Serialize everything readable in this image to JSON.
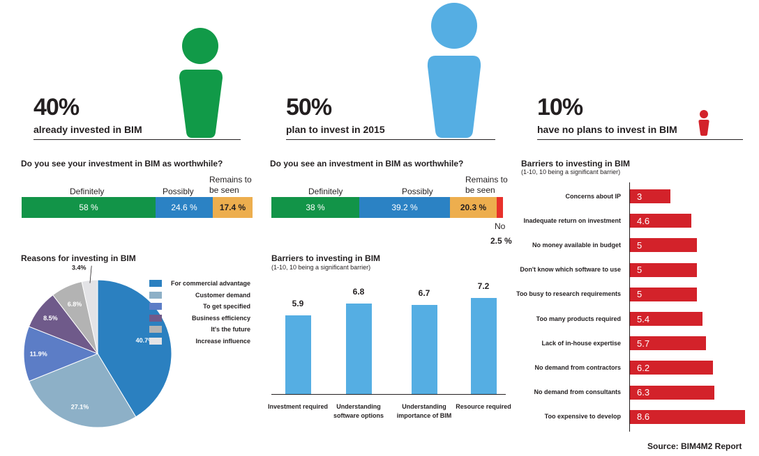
{
  "stats": [
    {
      "percent": "40%",
      "label": "already invested in BIM",
      "color": "#119a48"
    },
    {
      "percent": "50%",
      "label": "plan to invest in 2015",
      "color": "#55aee3"
    },
    {
      "percent": "10%",
      "label": "have no plans to invest in BIM",
      "color": "#d3222a"
    }
  ],
  "q1": {
    "title": "Do you see your investment in BIM as worthwhile?",
    "segments": [
      {
        "label": "Definitely",
        "value_text": "58 %",
        "value": 58,
        "color": "#129448"
      },
      {
        "label": "Possibly",
        "value_text": "24.6 %",
        "value": 24.6,
        "color": "#2b82c4"
      },
      {
        "label": "Remains to be seen",
        "value_text": "17.4 %",
        "value": 17.4,
        "color": "#edae4e"
      }
    ]
  },
  "q2": {
    "title": "Do you see an investment in BIM as worthwhile?",
    "segments": [
      {
        "label": "Definitely",
        "value_text": "38 %",
        "value": 38,
        "color": "#129448"
      },
      {
        "label": "Possibly",
        "value_text": "39.2 %",
        "value": 39.2,
        "color": "#2b82c4"
      },
      {
        "label": "Remains to be seen",
        "value_text": "20.3 %",
        "value": 20.3,
        "color": "#edae4e"
      },
      {
        "label": "No",
        "value_text": "2.5 %",
        "value": 2.5,
        "color": "#e8312b"
      }
    ]
  },
  "reasons": {
    "title": "Reasons for investing in BIM"
  },
  "barriers_vertical": {
    "title": "Barriers to investing in BIM",
    "subtitle": "(1-10, 10 being a significant barrier)"
  },
  "barriers_horizontal": {
    "title": "Barriers to investing in BIM",
    "subtitle": "(1-10, 10 being a significant barrier)"
  },
  "source": "Source: BIM4M2 Report",
  "chart_data": [
    {
      "type": "bar",
      "title": "Do you see your investment in BIM as worthwhile?",
      "orientation": "stacked-horizontal",
      "categories": [
        "Definitely",
        "Possibly",
        "Remains to be seen"
      ],
      "values": [
        58,
        24.6,
        17.4
      ]
    },
    {
      "type": "bar",
      "title": "Do you see an investment in BIM as worthwhile?",
      "orientation": "stacked-horizontal",
      "categories": [
        "Definitely",
        "Possibly",
        "Remains to be seen",
        "No"
      ],
      "values": [
        38,
        39.2,
        20.3,
        2.5
      ]
    },
    {
      "type": "pie",
      "title": "Reasons for investing in BIM",
      "categories": [
        "For commercial advantage",
        "Customer demand",
        "To get specified",
        "Business efficiency",
        "It's the future",
        "Increase influence"
      ],
      "values": [
        40.7,
        27.1,
        11.9,
        8.5,
        6.8,
        3.4
      ],
      "labels": [
        "40.7%",
        "27.1%",
        "11.9%",
        "8.5%",
        "6.8%",
        "3.4%"
      ],
      "colors": [
        "#2b80c0",
        "#8db0c7",
        "#5c7dc6",
        "#6f5a8a",
        "#b3b3b3",
        "#e3e3e6"
      ],
      "legend": "top-right"
    },
    {
      "type": "bar",
      "title": "Barriers to investing in BIM",
      "subtitle": "(1-10, 10 being a significant barrier)",
      "categories": [
        "Investment required",
        "Understanding software options",
        "Understanding importance of BIM",
        "Resource required"
      ],
      "values": [
        5.9,
        6.8,
        6.7,
        7.2
      ],
      "labels": [
        "5.9",
        "6.8",
        "6.7",
        "7.2"
      ],
      "ylim": [
        0,
        10
      ],
      "color": "#55aee3"
    },
    {
      "type": "bar",
      "orientation": "horizontal",
      "title": "Barriers to investing in BIM",
      "subtitle": "(1-10, 10 being a significant barrier)",
      "categories": [
        "Concerns about  IP",
        "Inadequate return on investment",
        "No money available in budget",
        "Don't know which software to use",
        "Too busy to research requirements",
        "Too many products required",
        "Lack of in-house expertise",
        "No demand from contractors",
        "No demand from consultants",
        "Too expensive to develop"
      ],
      "values": [
        3,
        4.6,
        5,
        5,
        5,
        5.4,
        5.7,
        6.2,
        6.3,
        8.6
      ],
      "labels": [
        "3",
        "4.6",
        "5",
        "5",
        "5",
        "5.4",
        "5.7",
        "6.2",
        "6.3",
        "8.6"
      ],
      "xlim": [
        0,
        10
      ],
      "color": "#d3222a"
    }
  ]
}
